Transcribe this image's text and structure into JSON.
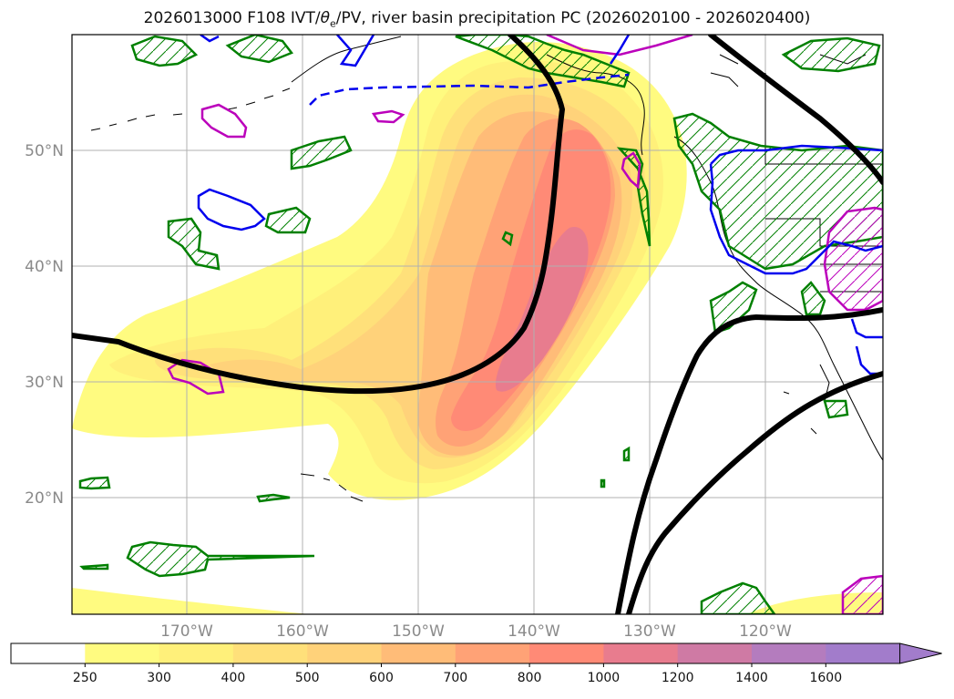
{
  "title": {
    "prefix": "2026013000 F108 IVT/",
    "theta": "θ",
    "theta_sub": "e",
    "suffix": "/PV, river basin precipitation PC (2026020100 - 2026020400)"
  },
  "map": {
    "projection": "lat-lon",
    "lon_ticks": [
      "170°W",
      "160°W",
      "150°W",
      "140°W",
      "130°W",
      "120°W"
    ],
    "lat_ticks": [
      "50°N",
      "40°N",
      "30°N",
      "20°N"
    ],
    "grid": true
  },
  "ivt_contours": {
    "fill_colors": [
      "#ffffff",
      "#fffb80",
      "#fff07a",
      "#ffe07a",
      "#ffd27a",
      "#ffbc78",
      "#ffa276",
      "#ff8a76",
      "#e87c8e",
      "#cf7aa4",
      "#b47cbe",
      "#a27ccb"
    ],
    "levels": [
      "250",
      "300",
      "400",
      "500",
      "600",
      "700",
      "800",
      "1000",
      "1200",
      "1400",
      "1600"
    ],
    "extend": "max"
  },
  "overlay_colors": {
    "pv_contour": "#000000",
    "theta_e_solid": "#0000ee",
    "theta_e_dashed": "#0000ee",
    "precip_hatch": "#008000",
    "precip_magenta": "#bb00bb"
  }
}
